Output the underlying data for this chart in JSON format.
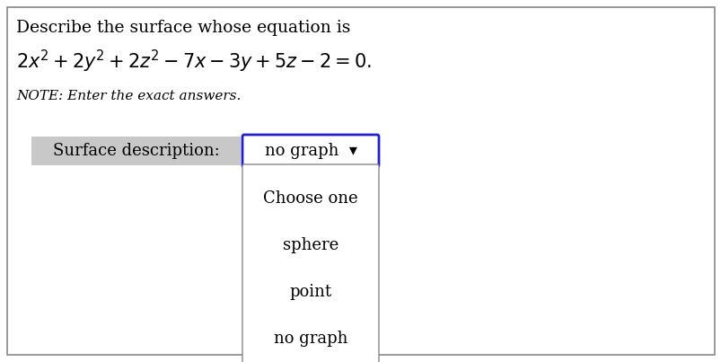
{
  "title_line1": "Describe the surface whose equation is",
  "equation": "$2x^2 + 2y^2 + 2z^2 - 7x - 3y + 5z - 2 = 0.$",
  "note": "NOTE: Enter the exact answers.",
  "label_text": "Surface description:",
  "dropdown_text": "no graph  ▾",
  "menu_items": [
    "Choose one",
    "sphere",
    "point",
    "no graph"
  ],
  "background_color": "#ffffff",
  "label_bg_color": "#c8c8c8",
  "dropdown_border_color": "#2222cc",
  "menu_border_color": "#888888",
  "menu_bg_color": "#ffffff",
  "outer_border_color": "#888888",
  "title_fontsize": 13.5,
  "eq_fontsize": 15,
  "note_fontsize": 11,
  "label_fontsize": 13,
  "dropdown_fontsize": 13,
  "menu_fontsize": 13
}
